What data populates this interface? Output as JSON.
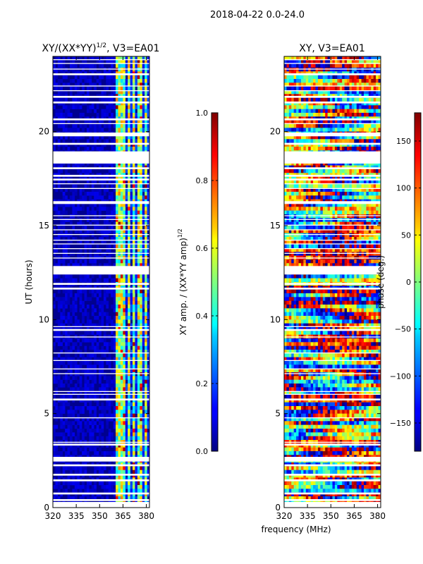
{
  "suptitle": "2018-04-22 0.0-24.0",
  "xlabel_shared": "frequency (MHz)",
  "chart_data": [
    {
      "type": "heatmap",
      "title": "XY/(XX*YY)",
      "title_superscript": "1/2",
      "title_suffix": ", V3=EA01",
      "xlabel": "",
      "ylabel": "UT (hours)",
      "xlim": [
        320,
        382
      ],
      "ylim": [
        0,
        24
      ],
      "xticks": [
        "320",
        "335",
        "350",
        "365",
        "380"
      ],
      "xtick_values": [
        320,
        335,
        350,
        365,
        380
      ],
      "yticks": [
        "0",
        "5",
        "10",
        "15",
        "20"
      ],
      "ytick_values": [
        0,
        5,
        10,
        15,
        20
      ],
      "colorbar": {
        "label": "XY amp. / (XX*YY amp)",
        "label_superscript": "1/2",
        "range": [
          0.0,
          1.0
        ],
        "ticks": [
          "0.0",
          "0.2",
          "0.4",
          "0.6",
          "0.8",
          "1.0"
        ],
        "tick_values": [
          0.0,
          0.2,
          0.4,
          0.6,
          0.8,
          1.0
        ],
        "colormap": "jet"
      },
      "gaps_hours": [
        [
          0.0,
          0.3
        ],
        [
          0.35,
          0.45
        ],
        [
          0.7,
          0.8
        ],
        [
          1.4,
          1.5
        ],
        [
          1.7,
          1.8
        ],
        [
          2.2,
          2.3
        ],
        [
          2.45,
          2.7
        ],
        [
          3.3,
          3.4
        ],
        [
          3.45,
          3.5
        ],
        [
          4.75,
          4.8
        ],
        [
          5.7,
          5.8
        ],
        [
          6.0,
          6.05
        ],
        [
          6.15,
          6.2
        ],
        [
          7.1,
          7.15
        ],
        [
          7.35,
          7.4
        ],
        [
          7.8,
          7.85
        ],
        [
          8.2,
          8.25
        ],
        [
          9.05,
          9.1
        ],
        [
          9.4,
          9.5
        ],
        [
          9.6,
          9.65
        ],
        [
          11.6,
          11.7
        ],
        [
          11.85,
          11.95
        ],
        [
          12.4,
          12.85
        ],
        [
          13.25,
          13.3
        ],
        [
          13.5,
          13.55
        ],
        [
          13.75,
          13.8
        ],
        [
          14.0,
          14.05
        ],
        [
          14.2,
          14.25
        ],
        [
          14.5,
          14.55
        ],
        [
          14.75,
          14.8
        ],
        [
          15.0,
          15.05
        ],
        [
          15.3,
          15.35
        ],
        [
          15.5,
          15.55
        ],
        [
          16.15,
          16.3
        ],
        [
          16.95,
          17.0
        ],
        [
          17.2,
          17.25
        ],
        [
          17.4,
          17.5
        ],
        [
          17.6,
          17.7
        ],
        [
          18.0,
          18.1
        ],
        [
          18.3,
          18.95
        ],
        [
          19.3,
          19.4
        ],
        [
          19.75,
          19.95
        ],
        [
          20.4,
          20.45
        ],
        [
          20.6,
          20.7
        ],
        [
          21.5,
          21.6
        ],
        [
          21.8,
          21.9
        ],
        [
          22.15,
          22.2
        ],
        [
          22.4,
          22.45
        ],
        [
          23.0,
          23.1
        ],
        [
          23.3,
          23.35
        ],
        [
          23.6,
          23.65
        ],
        [
          23.8,
          23.85
        ]
      ],
      "rfi_bands_mhz": [
        [
          361,
          363
        ],
        [
          364,
          366
        ],
        [
          367.5,
          369
        ],
        [
          371,
          373
        ],
        [
          375,
          377
        ],
        [
          378.5,
          380
        ]
      ]
    },
    {
      "type": "heatmap",
      "title": "XY, V3=EA01",
      "xlabel": "frequency (MHz)",
      "ylabel": "",
      "xlim": [
        320,
        382
      ],
      "ylim": [
        0,
        24
      ],
      "xticks": [
        "320",
        "335",
        "350",
        "365",
        "380"
      ],
      "xtick_values": [
        320,
        335,
        350,
        365,
        380
      ],
      "yticks": [
        "0",
        "5",
        "10",
        "15",
        "20"
      ],
      "ytick_values": [
        0,
        5,
        10,
        15,
        20
      ],
      "colorbar": {
        "label": "phase (deg.)",
        "range": [
          -180,
          180
        ],
        "ticks": [
          "−150",
          "−100",
          "−50",
          "0",
          "50",
          "100",
          "150"
        ],
        "tick_values": [
          -150,
          -100,
          -50,
          0,
          50,
          100,
          150
        ],
        "colormap": "jet"
      }
    }
  ]
}
